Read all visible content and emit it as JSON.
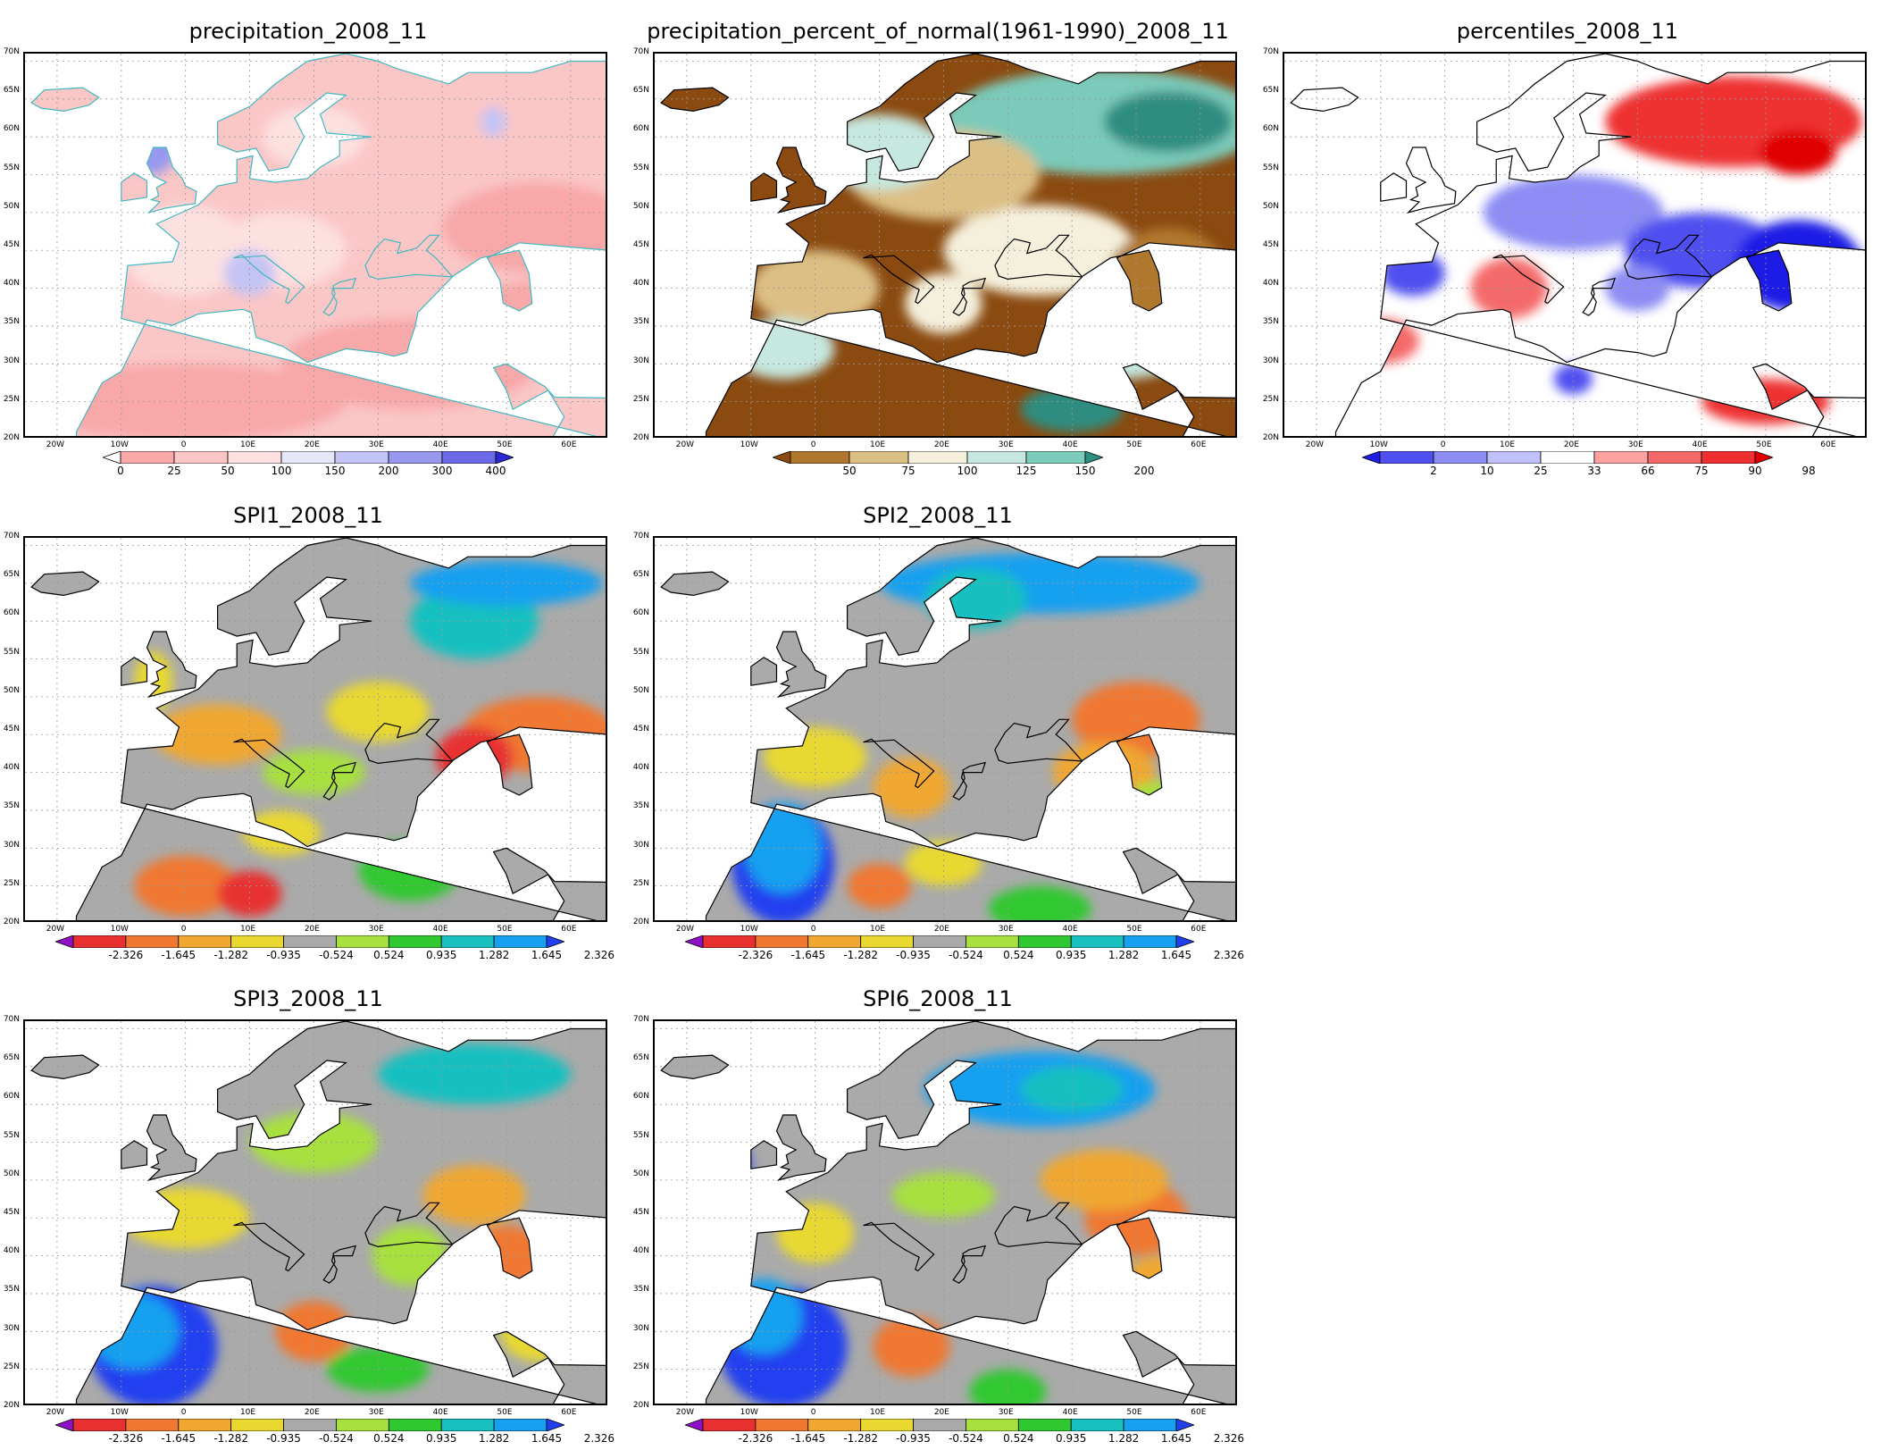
{
  "panels": [
    {
      "id": "p1",
      "title": "precipitation_2008_11",
      "colorbar": "cb_precip"
    },
    {
      "id": "p2",
      "title": "precipitation_percent_of_normal(1961-1990)_2008_11",
      "colorbar": "cb_percent"
    },
    {
      "id": "p3",
      "title": "percentiles_2008_11",
      "colorbar": "cb_percentiles"
    },
    {
      "id": "p4",
      "title": "SPI1_2008_11",
      "colorbar": "cb_spi"
    },
    {
      "id": "p5",
      "title": "SPI2_2008_11",
      "colorbar": "cb_spi"
    },
    {
      "id": "p6",
      "title": "SPI3_2008_11",
      "colorbar": "cb_spi"
    },
    {
      "id": "p7",
      "title": "SPI6_2008_11",
      "colorbar": "cb_spi"
    }
  ],
  "lat_labels": [
    "70N",
    "65N",
    "60N",
    "55N",
    "50N",
    "45N",
    "40N",
    "35N",
    "30N",
    "25N",
    "20N"
  ],
  "lon_labels": [
    "20W",
    "10W",
    "0",
    "10E",
    "20E",
    "30E",
    "40E",
    "50E",
    "60E"
  ],
  "colorbars": {
    "cb_precip": {
      "labels": [
        "0",
        "25",
        "50",
        "100",
        "150",
        "200",
        "300",
        "400"
      ],
      "colors": [
        "#ffffff",
        "#f8a8a8",
        "#fbc6c6",
        "#fde0e0",
        "#e6e6fa",
        "#c4c4f4",
        "#9898ee",
        "#6a6ae6",
        "#2a2ad6"
      ]
    },
    "cb_percent": {
      "labels": [
        "50",
        "75",
        "100",
        "125",
        "150",
        "200"
      ],
      "colors": [
        "#8a4a10",
        "#b0782e",
        "#dcbf85",
        "#f5f0dc",
        "#c6e8e0",
        "#7ccaba",
        "#2e8d80"
      ]
    },
    "cb_percentiles": {
      "labels": [
        "2",
        "10",
        "25",
        "33",
        "66",
        "75",
        "90",
        "98"
      ],
      "colors": [
        "#1e1ee6",
        "#5050f0",
        "#8c8cf4",
        "#c0c0fa",
        "#ffffff",
        "#fca0a0",
        "#f46a6a",
        "#ee3030",
        "#e00000"
      ]
    },
    "cb_spi": {
      "labels": [
        "-2.326",
        "-1.645",
        "-1.282",
        "-0.935",
        "-0.524",
        "0.524",
        "0.935",
        "1.282",
        "1.645",
        "2.326"
      ],
      "colors": [
        "#9010c8",
        "#e83030",
        "#f07830",
        "#f0a830",
        "#e8d830",
        "#aaaaaa",
        "#a8e040",
        "#30c830",
        "#18c0c0",
        "#18a0f0",
        "#2040f0"
      ]
    }
  }
}
